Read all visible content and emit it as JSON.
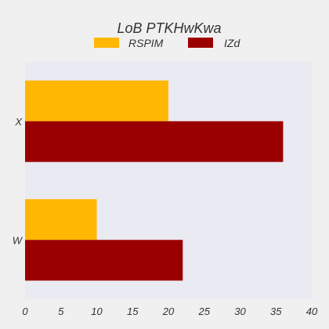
{
  "chart_data": {
    "type": "bar",
    "orientation": "horizontal",
    "title": "LoB PTKHwKwa",
    "categories": [
      "X",
      "W"
    ],
    "series": [
      {
        "name": "RSPIM",
        "values": [
          20,
          10
        ],
        "color": "#FFB703"
      },
      {
        "name": "IZd",
        "values": [
          36,
          22
        ],
        "color": "#9B0000"
      }
    ],
    "xlim": [
      0,
      40
    ],
    "xticks": [
      0,
      5,
      10,
      15,
      20,
      25,
      30,
      35,
      40
    ],
    "xlabel": "",
    "ylabel": "",
    "grid": false,
    "legend_position": "top-center",
    "plot_background": "#EAEAF2",
    "figure_background": "#F0F0F0"
  }
}
